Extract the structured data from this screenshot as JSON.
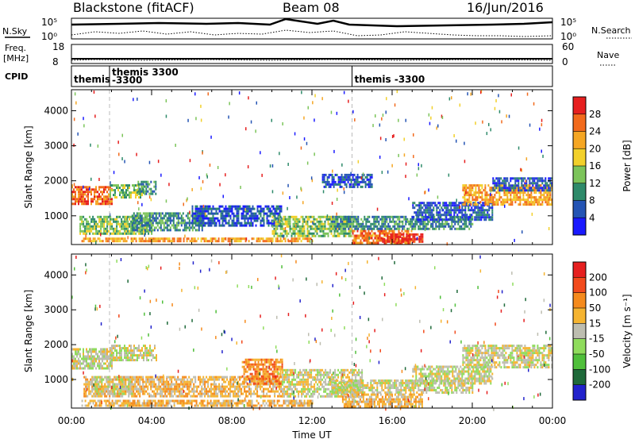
{
  "header": {
    "station": "Blackstone (fitACF)",
    "beam": "Beam 08",
    "date": "16/Jun/2016"
  },
  "top_panels": {
    "nsky_label": "N.Sky",
    "nsearch_label": "N.Search",
    "noise_ticks_left": [
      "10^5",
      "10^0"
    ],
    "noise_ticks_right": [
      "10^5",
      "10^0"
    ],
    "freq_label_1": "Freq.",
    "freq_label_2": "[MHz]",
    "freq_ticks": [
      "18",
      "8"
    ],
    "nave_label": "Nave",
    "nave_ticks": [
      "60",
      "0"
    ],
    "cpid_label": "CPID",
    "cpid_entries": [
      {
        "name": "themis",
        "start_hour": 0.0
      },
      {
        "name": "themis 3300",
        "start_hour": 1.9
      },
      {
        "name": "-3300",
        "start_hour": 1.9
      },
      {
        "name": "themis -3300",
        "start_hour": 14.0
      }
    ],
    "program_change_hours": [
      1.9,
      14.0
    ]
  },
  "chart_data": [
    {
      "type": "heatmap",
      "title": "",
      "ylabel": "Slant Range [km]",
      "xlabel": "Time UT",
      "x_ticks": [
        "00:00",
        "04:00",
        "08:00",
        "12:00",
        "16:00",
        "20:00",
        "00:00"
      ],
      "xlim": [
        0,
        24
      ],
      "y_ticks": [
        "1000",
        "2000",
        "3000",
        "4000"
      ],
      "ylim": [
        180,
        4600
      ],
      "colorbar": {
        "label": "Power [dB]",
        "ticks": [
          "4",
          "8",
          "12",
          "16",
          "20",
          "24",
          "28"
        ],
        "colors": [
          "#1a1aff",
          "#2454b4",
          "#2e8a6a",
          "#7cc45a",
          "#f2d02a",
          "#f5a623",
          "#f26a1c",
          "#e61f1f"
        ]
      },
      "bands": [
        {
          "t0": 0.0,
          "t1": 2.0,
          "r0": 1350,
          "r1": 1850,
          "level": 6
        },
        {
          "t0": 1.9,
          "t1": 3.6,
          "r0": 1550,
          "r1": 1900,
          "level": 3
        },
        {
          "t0": 3.3,
          "t1": 4.2,
          "r0": 1600,
          "r1": 2000,
          "level": 2
        },
        {
          "t0": 0.4,
          "t1": 4.0,
          "r0": 500,
          "r1": 1000,
          "level": 3
        },
        {
          "t0": 3.0,
          "t1": 6.5,
          "r0": 600,
          "r1": 1100,
          "level": 2
        },
        {
          "t0": 6.0,
          "t1": 10.5,
          "r0": 700,
          "r1": 1300,
          "level": 1
        },
        {
          "t0": 0.5,
          "t1": 12.0,
          "r0": 250,
          "r1": 380,
          "level": 5
        },
        {
          "t0": 10.0,
          "t1": 14.0,
          "r0": 400,
          "r1": 1000,
          "level": 3
        },
        {
          "t0": 14.0,
          "t1": 17.0,
          "r0": 250,
          "r1": 600,
          "level": 6
        },
        {
          "t0": 15.5,
          "t1": 17.5,
          "r0": 250,
          "r1": 500,
          "level": 7
        },
        {
          "t0": 13.0,
          "t1": 20.0,
          "r0": 650,
          "r1": 1000,
          "level": 2
        },
        {
          "t0": 17.0,
          "t1": 21.0,
          "r0": 900,
          "r1": 1400,
          "level": 1
        },
        {
          "t0": 19.5,
          "t1": 24.0,
          "r0": 1300,
          "r1": 1900,
          "level": 5
        },
        {
          "t0": 21.0,
          "t1": 24.0,
          "r0": 1750,
          "r1": 2100,
          "level": 1
        },
        {
          "t0": 12.5,
          "t1": 15.0,
          "r0": 1800,
          "r1": 2200,
          "level": 1
        }
      ]
    },
    {
      "type": "heatmap",
      "title": "",
      "ylabel": "Slant Range [km]",
      "xlabel": "Time UT",
      "x_ticks": [
        "00:00",
        "04:00",
        "08:00",
        "12:00",
        "16:00",
        "20:00",
        "00:00"
      ],
      "xlim": [
        0,
        24
      ],
      "y_ticks": [
        "1000",
        "2000",
        "3000",
        "4000"
      ],
      "ylim": [
        180,
        4600
      ],
      "colorbar": {
        "label": "Velocity [m s⁻¹]",
        "ticks": [
          "200",
          "100",
          "50",
          "15",
          "-15",
          "-50",
          "-100",
          "-200"
        ],
        "colors": [
          "#2222cc",
          "#1f6a3a",
          "#4fbf3a",
          "#8fdc5c",
          "#bdbdb0",
          "#f5b431",
          "#f58a1c",
          "#f24a1c",
          "#e61f1f"
        ]
      },
      "bands": [
        {
          "t0": 0.0,
          "t1": 2.0,
          "r0": 1350,
          "r1": 1900,
          "level": 4
        },
        {
          "t0": 1.9,
          "t1": 4.2,
          "r0": 1550,
          "r1": 2000,
          "level": 4
        },
        {
          "t0": 0.6,
          "t1": 10.5,
          "r0": 550,
          "r1": 1100,
          "level": 5
        },
        {
          "t0": 8.5,
          "t1": 10.5,
          "r0": 900,
          "r1": 1600,
          "level": 6
        },
        {
          "t0": 1.0,
          "t1": 3.0,
          "r0": 600,
          "r1": 1100,
          "level": 4
        },
        {
          "t0": 0.5,
          "t1": 12.0,
          "r0": 220,
          "r1": 420,
          "level": 5
        },
        {
          "t0": 10.5,
          "t1": 14.5,
          "r0": 500,
          "r1": 1300,
          "level": 4
        },
        {
          "t0": 13.0,
          "t1": 20.0,
          "r0": 650,
          "r1": 1000,
          "level": 4
        },
        {
          "t0": 17.0,
          "t1": 21.0,
          "r0": 900,
          "r1": 1400,
          "level": 4
        },
        {
          "t0": 19.5,
          "t1": 24.0,
          "r0": 1350,
          "r1": 2000,
          "level": 4
        },
        {
          "t0": 13.5,
          "t1": 17.5,
          "r0": 250,
          "r1": 600,
          "level": 5
        }
      ]
    }
  ]
}
